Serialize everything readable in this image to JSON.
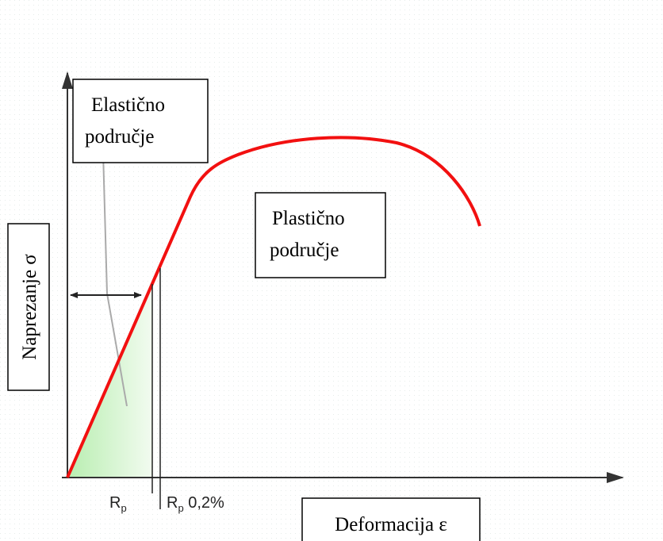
{
  "elastic_box": {
    "lines": [
      "Elastično",
      "područje"
    ]
  },
  "plastic_box": {
    "lines": [
      "Plastično",
      "područje"
    ]
  },
  "y_axis_label": "Naprezanje σ",
  "x_axis_label": "Deformacija ε",
  "rp_label": {
    "base": "R",
    "sub": "p"
  },
  "rp02_label": {
    "base": "R",
    "sub": "p",
    "suffix": " 0,2%"
  }
}
